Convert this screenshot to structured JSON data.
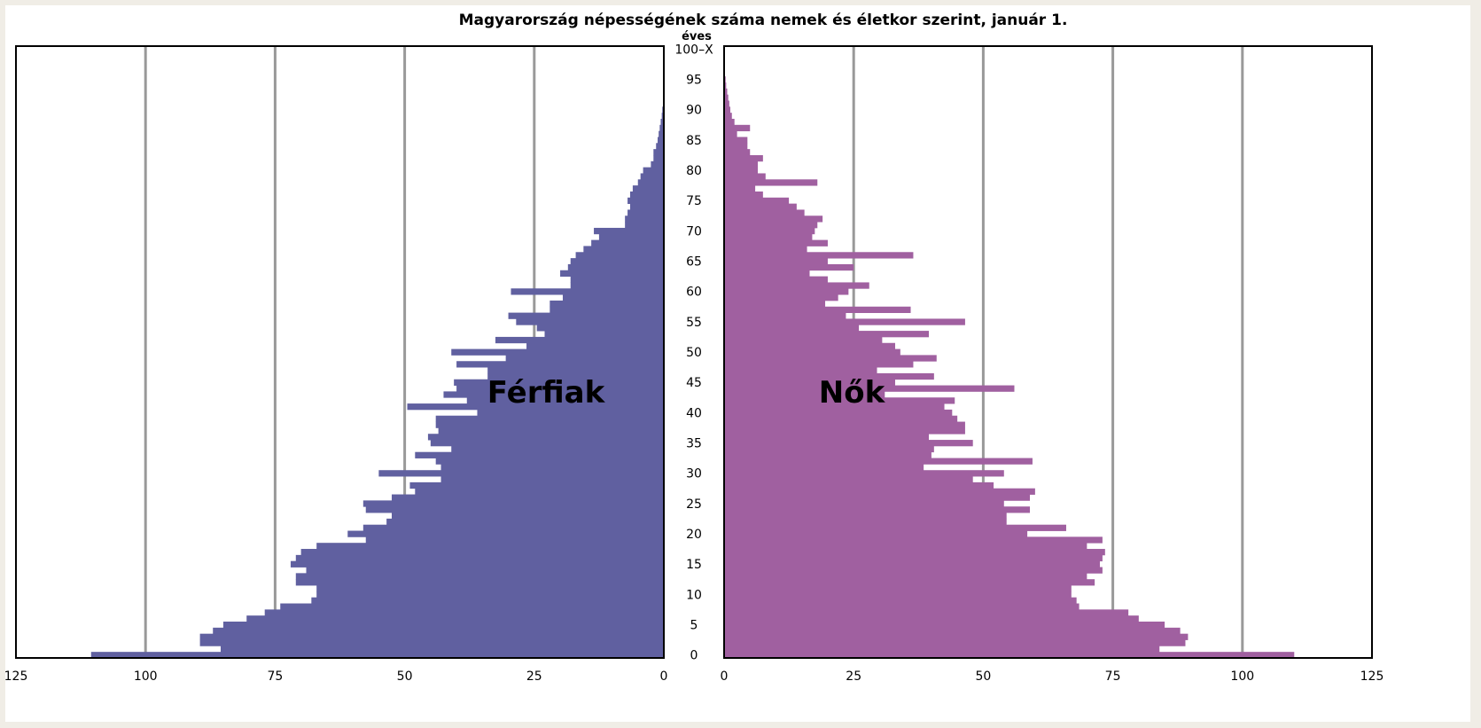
{
  "chart_data": {
    "type": "bar",
    "orientation": "horizontal",
    "layout": "population-pyramid",
    "title": "Magyarország népességének száma nemek és életkor szerint, január 1.",
    "ylabel": "éves",
    "categories": [
      "0",
      "1",
      "2",
      "3",
      "4",
      "5",
      "6",
      "7",
      "8",
      "9",
      "10",
      "11",
      "12",
      "13",
      "14",
      "15",
      "16",
      "17",
      "18",
      "19",
      "20",
      "21",
      "22",
      "23",
      "24",
      "25",
      "26",
      "27",
      "28",
      "29",
      "30",
      "31",
      "32",
      "33",
      "34",
      "35",
      "36",
      "37",
      "38",
      "39",
      "40",
      "41",
      "42",
      "43",
      "44",
      "45",
      "46",
      "47",
      "48",
      "49",
      "50",
      "51",
      "52",
      "53",
      "54",
      "55",
      "56",
      "57",
      "58",
      "59",
      "60",
      "61",
      "62",
      "63",
      "64",
      "65",
      "66",
      "67",
      "68",
      "69",
      "70",
      "71",
      "72",
      "73",
      "74",
      "75",
      "76",
      "77",
      "78",
      "79",
      "80",
      "81",
      "82",
      "83",
      "84",
      "85",
      "86",
      "87",
      "88",
      "89",
      "90",
      "91",
      "92",
      "93",
      "94",
      "95",
      "96",
      "97",
      "98",
      "99",
      "100–X"
    ],
    "y_tick_labels": [
      "0",
      "5",
      "10",
      "15",
      "20",
      "25",
      "30",
      "35",
      "40",
      "45",
      "50",
      "55",
      "60",
      "65",
      "70",
      "75",
      "80",
      "85",
      "90",
      "95",
      "100–X"
    ],
    "x_tick_labels_left": [
      "125",
      "100",
      "75",
      "50",
      "25",
      "0"
    ],
    "x_tick_labels_right": [
      "0",
      "25",
      "50",
      "75",
      "100",
      "125"
    ],
    "xlim": [
      0,
      125
    ],
    "grid": true,
    "series": [
      {
        "name": "Férfiak",
        "side": "left",
        "color": "#6060a0",
        "values": [
          110.5,
          85.5,
          89.5,
          89.5,
          87,
          85,
          80.5,
          77,
          74,
          68,
          67,
          67,
          71,
          71,
          69,
          72,
          71,
          70,
          67,
          57.5,
          61,
          58,
          53.5,
          52.5,
          57.5,
          58,
          52.5,
          48,
          49,
          43,
          55,
          43,
          44,
          48,
          41,
          45,
          45.5,
          43.5,
          44,
          44,
          36,
          49.5,
          38,
          42.5,
          40,
          40.5,
          34,
          34,
          40,
          30.5,
          41,
          26.5,
          32.5,
          23,
          24.5,
          28.5,
          30,
          22,
          22,
          19.5,
          29.5,
          18,
          18,
          20,
          18.5,
          18,
          17,
          15.5,
          14,
          12.5,
          13.5,
          7.5,
          7.5,
          7,
          6.5,
          7,
          6.5,
          6,
          5,
          4.5,
          4,
          2.5,
          2,
          2,
          1.5,
          1.2,
          1,
          0.8,
          0.6,
          0.4,
          0.3,
          0,
          0,
          0,
          0,
          0,
          0,
          0,
          0,
          0,
          0
        ]
      },
      {
        "name": "Nők",
        "side": "right",
        "color": "#a060a0",
        "values": [
          110,
          84,
          89,
          89.5,
          88,
          85,
          80,
          78,
          68.5,
          68,
          67,
          67,
          71.5,
          70,
          73,
          72.5,
          73,
          73.5,
          70,
          73,
          58.5,
          66,
          54.5,
          54.5,
          59,
          54,
          59,
          60,
          52,
          48,
          54,
          38.5,
          59.5,
          40,
          40.5,
          48,
          39.5,
          46.5,
          46.5,
          45,
          44,
          42.5,
          44.5,
          31,
          56,
          33,
          40.5,
          29.5,
          36.5,
          41,
          34,
          33,
          30.5,
          39.5,
          26,
          46.5,
          23.5,
          36,
          19.5,
          22,
          24,
          28,
          20,
          16.5,
          25,
          20,
          36.5,
          16,
          20,
          17,
          17.5,
          18,
          19,
          15.5,
          14,
          12.5,
          7.5,
          6,
          18,
          8,
          6.5,
          6.5,
          7.5,
          5,
          4.5,
          4.5,
          2.5,
          5,
          2,
          1.5,
          1.2,
          1,
          0.8,
          0.6,
          0.4,
          0.3,
          0,
          0,
          0,
          0,
          0
        ]
      }
    ]
  }
}
